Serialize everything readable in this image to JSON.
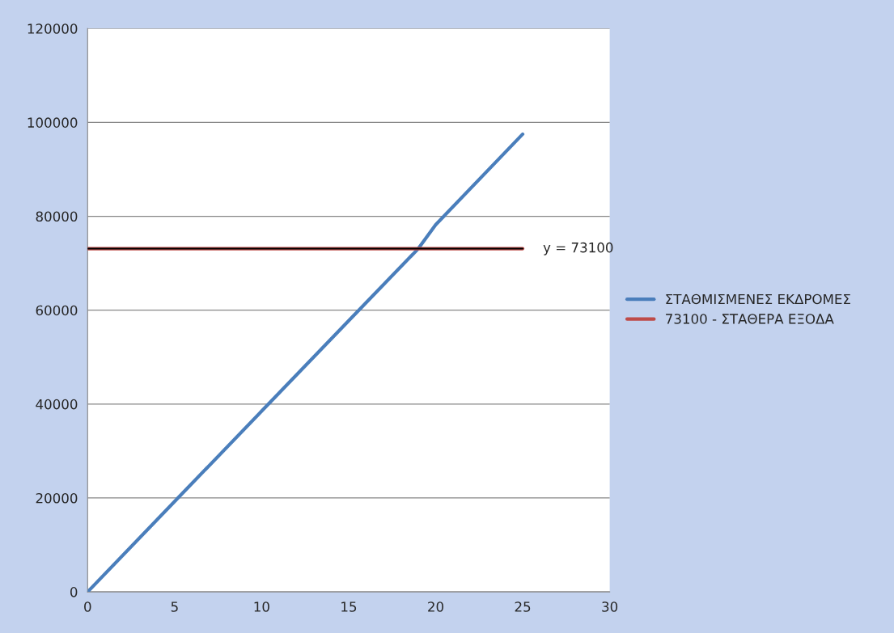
{
  "chart_data": {
    "type": "line",
    "series": [
      {
        "name": "ΣΤΑΘΜΙΣΜΕΝΕΣ ΕΚΔΡΟΜΕΣ",
        "color": "#4a7ebb",
        "x": [
          0,
          5,
          10,
          15,
          19,
          20,
          25
        ],
        "values": [
          0,
          19250,
          38500,
          57750,
          73100,
          78200,
          97500
        ]
      },
      {
        "name": "73100 - ΣΤΑΘΕΡΑ ΕΞΟΔΑ",
        "color": "#be4b48",
        "x": [
          0,
          25
        ],
        "values": [
          73100,
          73100
        ]
      },
      {
        "color": "#000000",
        "x": [
          0,
          25
        ],
        "values": [
          73100,
          73100
        ]
      }
    ],
    "annotations": [
      {
        "text": "y = 73100",
        "x": 25,
        "y": 73100
      }
    ],
    "xlim": [
      0,
      30
    ],
    "xticks": [
      0,
      5,
      10,
      15,
      20,
      25,
      30
    ],
    "ylim": [
      0,
      120000
    ],
    "yticks": [
      0,
      20000,
      40000,
      60000,
      80000,
      100000,
      120000
    ],
    "grid": "y",
    "legend": "right",
    "marker": "none",
    "line_style": "solid"
  }
}
